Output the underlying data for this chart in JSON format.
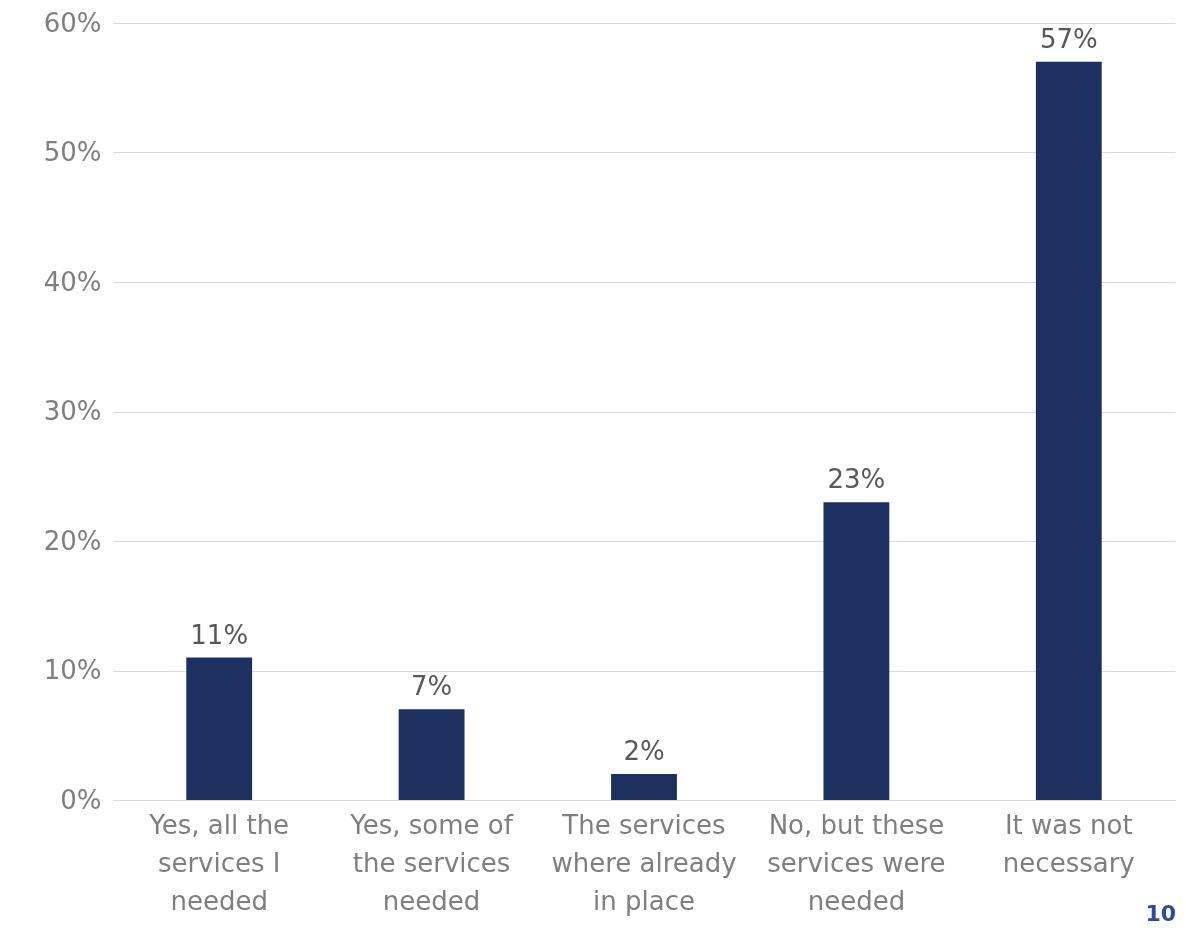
{
  "chart_data": {
    "type": "bar",
    "categories": [
      "Yes, all the services I needed",
      "Yes, some of the services needed",
      "The services where already in place",
      "No, but these services were needed",
      "It was not necessary"
    ],
    "values": [
      11,
      7,
      2,
      23,
      57
    ],
    "value_labels": [
      "11%",
      "7%",
      "2%",
      "23%",
      "57%"
    ],
    "color": "#1c3160",
    "ylim": [
      0,
      60
    ],
    "yticks": [
      {
        "value": 0,
        "label": "0%"
      },
      {
        "value": 10,
        "label": "10%"
      },
      {
        "value": 20,
        "label": "20%"
      },
      {
        "value": 30,
        "label": "30%"
      },
      {
        "value": 40,
        "label": "40%"
      },
      {
        "value": 50,
        "label": "50%"
      },
      {
        "value": 60,
        "label": "60%"
      }
    ],
    "grid": "y",
    "annotations": [
      "10"
    ]
  }
}
